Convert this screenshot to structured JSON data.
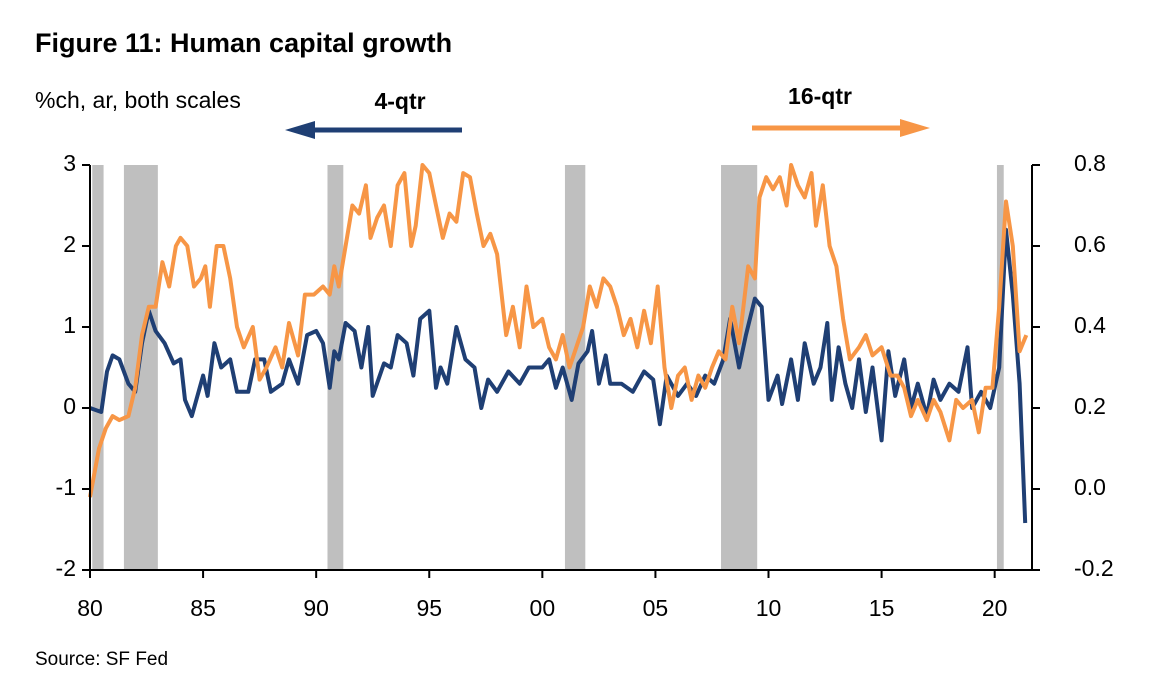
{
  "chart_data": {
    "type": "line",
    "title": "Figure 11: Human capital growth",
    "subtitle": "%ch, ar, both scales",
    "source": "Source: SF Fed",
    "xlim": [
      1980,
      2021.65
    ],
    "xticks": [
      {
        "value": 1980,
        "label": "80"
      },
      {
        "value": 1985,
        "label": "85"
      },
      {
        "value": 1990,
        "label": "90"
      },
      {
        "value": 1995,
        "label": "95"
      },
      {
        "value": 2000,
        "label": "00"
      },
      {
        "value": 2005,
        "label": "05"
      },
      {
        "value": 2010,
        "label": "10"
      },
      {
        "value": 2015,
        "label": "15"
      },
      {
        "value": 2020,
        "label": "20"
      }
    ],
    "ylim": [
      -2,
      3
    ],
    "yticks": [
      -2,
      -1,
      0,
      1,
      2,
      3
    ],
    "y2lim": [
      -0.2,
      0.8
    ],
    "y2ticks": [
      -0.2,
      {
        "value": 0,
        "label": "0.0"
      },
      0.2,
      0.4,
      0.6,
      0.8
    ],
    "shaded_periods": [
      {
        "start": 1980.1,
        "end": 1980.6
      },
      {
        "start": 1981.5,
        "end": 1983.0
      },
      {
        "start": 1990.5,
        "end": 1991.2
      },
      {
        "start": 2001.0,
        "end": 2001.9
      },
      {
        "start": 2007.9,
        "end": 2009.5
      },
      {
        "start": 2020.1,
        "end": 2020.4
      }
    ],
    "shade_color": "#bfbfbf",
    "series": [
      {
        "name": "4-qtr",
        "color": "#1f3f74",
        "axis": "y",
        "x": [
          1980,
          1980.5,
          1980.75,
          1981,
          1981.3,
          1981.7,
          1982,
          1982.3,
          1982.6,
          1982.9,
          1983.3,
          1983.7,
          1984,
          1984.2,
          1984.5,
          1985,
          1985.2,
          1985.5,
          1985.8,
          1986.2,
          1986.5,
          1987,
          1987.3,
          1987.7,
          1988,
          1988.5,
          1988.8,
          1989.2,
          1989.6,
          1990,
          1990.3,
          1990.6,
          1990.8,
          1991,
          1991.3,
          1991.7,
          1992,
          1992.3,
          1992.5,
          1993,
          1993.3,
          1993.6,
          1994,
          1994.3,
          1994.6,
          1995,
          1995.3,
          1995.5,
          1995.8,
          1996.2,
          1996.6,
          1997,
          1997.3,
          1997.6,
          1998,
          1998.5,
          1999,
          1999.4,
          2000,
          2000.3,
          2000.6,
          2000.9,
          2001.3,
          2001.6,
          2002,
          2002.2,
          2002.5,
          2002.8,
          2003,
          2003.5,
          2004,
          2004.5,
          2004.9,
          2005.2,
          2005.5,
          2006,
          2006.4,
          2006.8,
          2007.2,
          2007.6,
          2008,
          2008.3,
          2008.7,
          2009,
          2009.4,
          2009.7,
          2010,
          2010.4,
          2010.6,
          2011,
          2011.3,
          2011.6,
          2012,
          2012.3,
          2012.6,
          2012.8,
          2013.1,
          2013.4,
          2013.7,
          2014,
          2014.3,
          2014.6,
          2015,
          2015.3,
          2015.6,
          2016,
          2016.3,
          2016.6,
          2017,
          2017.3,
          2017.6,
          2018,
          2018.4,
          2018.8,
          2019,
          2019.4,
          2019.8,
          2020.2,
          2020.5,
          2020.8,
          2021.1,
          2021.35
        ],
        "values": [
          0.0,
          -0.05,
          0.45,
          0.65,
          0.6,
          0.3,
          0.2,
          0.8,
          1.2,
          0.95,
          0.8,
          0.55,
          0.6,
          0.1,
          -0.1,
          0.4,
          0.15,
          0.8,
          0.5,
          0.6,
          0.2,
          0.2,
          0.6,
          0.6,
          0.2,
          0.3,
          0.6,
          0.3,
          0.9,
          0.95,
          0.8,
          0.25,
          0.7,
          0.6,
          1.05,
          0.95,
          0.5,
          1.0,
          0.15,
          0.55,
          0.5,
          0.9,
          0.8,
          0.4,
          1.1,
          1.2,
          0.25,
          0.5,
          0.3,
          1.0,
          0.6,
          0.5,
          0.0,
          0.35,
          0.2,
          0.45,
          0.3,
          0.5,
          0.5,
          0.6,
          0.25,
          0.5,
          0.1,
          0.55,
          0.7,
          0.95,
          0.3,
          0.65,
          0.3,
          0.3,
          0.2,
          0.45,
          0.35,
          -0.2,
          0.4,
          0.15,
          0.3,
          0.15,
          0.4,
          0.3,
          0.6,
          1.1,
          0.5,
          0.9,
          1.35,
          1.25,
          0.1,
          0.4,
          0.05,
          0.6,
          0.1,
          0.8,
          0.3,
          0.5,
          1.05,
          0.1,
          0.75,
          0.3,
          0.0,
          0.6,
          -0.05,
          0.5,
          -0.4,
          0.7,
          0.15,
          0.6,
          0.0,
          0.3,
          -0.1,
          0.35,
          0.1,
          0.3,
          0.2,
          0.75,
          0.0,
          0.2,
          0.0,
          0.5,
          2.2,
          1.4,
          0.3,
          -1.42
        ]
      },
      {
        "name": "16-qtr",
        "color": "#f79646",
        "axis": "y2",
        "x": [
          1980,
          1980.4,
          1980.7,
          1981,
          1981.3,
          1981.7,
          1982,
          1982.3,
          1982.6,
          1982.9,
          1983.2,
          1983.5,
          1983.8,
          1984,
          1984.3,
          1984.6,
          1984.9,
          1985.1,
          1985.3,
          1985.6,
          1985.9,
          1986.2,
          1986.5,
          1986.8,
          1987.2,
          1987.5,
          1987.8,
          1988.2,
          1988.5,
          1988.8,
          1989.2,
          1989.5,
          1989.9,
          1990.3,
          1990.6,
          1990.8,
          1991,
          1991.3,
          1991.6,
          1991.9,
          1992.2,
          1992.4,
          1992.7,
          1993,
          1993.3,
          1993.6,
          1993.9,
          1994.2,
          1994.4,
          1994.7,
          1995,
          1995.3,
          1995.6,
          1995.9,
          1996.2,
          1996.5,
          1996.8,
          1997.1,
          1997.4,
          1997.7,
          1998,
          1998.4,
          1998.7,
          1999,
          1999.3,
          1999.6,
          2000,
          2000.3,
          2000.6,
          2000.9,
          2001.2,
          2001.5,
          2001.8,
          2002.1,
          2002.4,
          2002.7,
          2003,
          2003.3,
          2003.6,
          2003.9,
          2004.2,
          2004.5,
          2004.8,
          2005.1,
          2005.4,
          2005.7,
          2006,
          2006.3,
          2006.6,
          2006.9,
          2007.2,
          2007.5,
          2007.8,
          2008.1,
          2008.4,
          2008.7,
          2009.1,
          2009.4,
          2009.6,
          2009.9,
          2010.2,
          2010.5,
          2010.8,
          2011,
          2011.3,
          2011.6,
          2011.9,
          2012.1,
          2012.4,
          2012.7,
          2013,
          2013.3,
          2013.6,
          2014,
          2014.3,
          2014.6,
          2015,
          2015.4,
          2015.7,
          2016,
          2016.3,
          2016.6,
          2017,
          2017.3,
          2017.6,
          2018,
          2018.3,
          2018.6,
          2019,
          2019.3,
          2019.6,
          2019.9,
          2020.2,
          2020.5,
          2020.8,
          2021.1,
          2021.4
        ],
        "values": [
          -0.02,
          0.1,
          0.15,
          0.18,
          0.17,
          0.18,
          0.25,
          0.38,
          0.45,
          0.45,
          0.56,
          0.5,
          0.6,
          0.62,
          0.6,
          0.5,
          0.52,
          0.55,
          0.45,
          0.6,
          0.6,
          0.52,
          0.4,
          0.35,
          0.4,
          0.27,
          0.3,
          0.35,
          0.3,
          0.41,
          0.33,
          0.48,
          0.48,
          0.5,
          0.48,
          0.55,
          0.5,
          0.6,
          0.7,
          0.68,
          0.75,
          0.62,
          0.67,
          0.7,
          0.6,
          0.75,
          0.78,
          0.6,
          0.65,
          0.8,
          0.78,
          0.7,
          0.62,
          0.68,
          0.66,
          0.78,
          0.77,
          0.68,
          0.6,
          0.63,
          0.58,
          0.38,
          0.45,
          0.35,
          0.5,
          0.4,
          0.42,
          0.35,
          0.32,
          0.38,
          0.3,
          0.35,
          0.4,
          0.5,
          0.45,
          0.52,
          0.5,
          0.45,
          0.38,
          0.42,
          0.35,
          0.44,
          0.36,
          0.5,
          0.3,
          0.2,
          0.28,
          0.3,
          0.22,
          0.28,
          0.25,
          0.3,
          0.34,
          0.32,
          0.45,
          0.36,
          0.55,
          0.52,
          0.72,
          0.77,
          0.74,
          0.77,
          0.7,
          0.8,
          0.75,
          0.72,
          0.78,
          0.65,
          0.75,
          0.6,
          0.55,
          0.42,
          0.32,
          0.35,
          0.38,
          0.33,
          0.35,
          0.28,
          0.28,
          0.25,
          0.18,
          0.22,
          0.17,
          0.22,
          0.19,
          0.12,
          0.22,
          0.2,
          0.22,
          0.14,
          0.25,
          0.25,
          0.45,
          0.71,
          0.6,
          0.34,
          0.38
        ]
      }
    ]
  }
}
